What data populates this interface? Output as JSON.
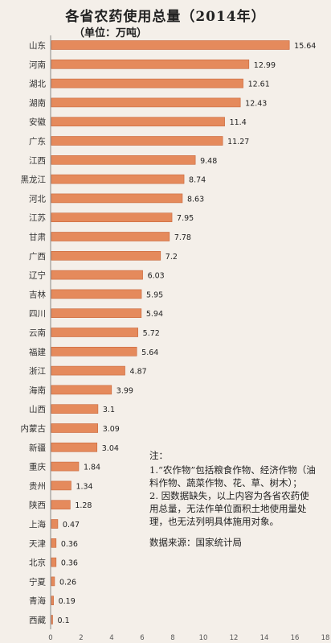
{
  "chart_data": {
    "type": "bar",
    "orientation": "horizontal",
    "title": "各省农药使用总量（2014年）",
    "subtitle": "（单位：万吨）",
    "categories": [
      "山东",
      "河南",
      "湖北",
      "湖南",
      "安徽",
      "广东",
      "江西",
      "黑龙江",
      "河北",
      "江苏",
      "甘肃",
      "广西",
      "辽宁",
      "吉林",
      "四川",
      "云南",
      "福建",
      "浙江",
      "海南",
      "山西",
      "内蒙古",
      "新疆",
      "重庆",
      "贵州",
      "陕西",
      "上海",
      "天津",
      "北京",
      "宁夏",
      "青海",
      "西藏"
    ],
    "values": [
      15.64,
      12.99,
      12.61,
      12.43,
      11.4,
      11.27,
      9.48,
      8.74,
      8.63,
      7.95,
      7.78,
      7.2,
      6.03,
      5.95,
      5.94,
      5.72,
      5.64,
      4.87,
      3.99,
      3.1,
      3.09,
      3.04,
      1.84,
      1.34,
      1.28,
      0.47,
      0.36,
      0.36,
      0.26,
      0.19,
      0.1
    ],
    "data_labels": [
      "15.64",
      "12.99",
      "12.61",
      "12.43",
      "11.4",
      "11.27",
      "9.48",
      "8.74",
      "8.63",
      "7.95",
      "7.78",
      "7.2",
      "6.03",
      "5.95",
      "5.94",
      "5.72",
      "5.64",
      "4.87",
      "3.99",
      "3.1",
      "3.09",
      "3.04",
      "1.84",
      "1.34",
      "1.28",
      "0.47",
      "0.36",
      "0.36",
      "0.26",
      "0.19",
      "0.1"
    ],
    "x_ticks": [
      "0",
      "2",
      "4",
      "6",
      "8",
      "10",
      "12",
      "14",
      "16",
      "18"
    ],
    "xlim": [
      0,
      18
    ],
    "grid": false,
    "bar_color": "#e58a5c",
    "bar_edge_color": "#c8673a"
  },
  "notes": {
    "heading": "注：",
    "item1": "1.“农作物”包括粮食作物、经济作物（油料作物、蔬菜作物、花、草、树木）；",
    "item2": "2. 因数据缺失，以上内容为各省农药使用总量，无法作单位面积土地使用量处理，也无法列明具体施用对象。",
    "source": "数据来源：国家统计局"
  }
}
